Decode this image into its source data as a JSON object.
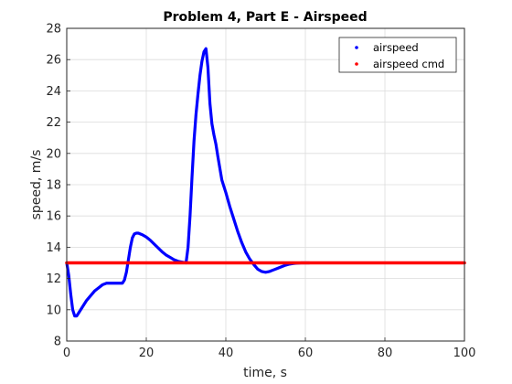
{
  "chart_data": {
    "type": "line",
    "title": "Problem 4, Part E - Airspeed",
    "xlabel": "time, s",
    "ylabel": "speed, m/s",
    "xlim": [
      0,
      100
    ],
    "ylim": [
      8,
      28
    ],
    "xticks": [
      0,
      20,
      40,
      60,
      80,
      100
    ],
    "yticks": [
      8,
      10,
      12,
      14,
      16,
      18,
      20,
      22,
      24,
      26,
      28
    ],
    "grid": true,
    "legend_position": "top-right",
    "series": [
      {
        "name": "airspeed",
        "color": "#0000ff",
        "x": [
          0,
          0.5,
          1,
          1.5,
          2,
          2.5,
          3,
          4,
          5,
          6,
          7,
          8,
          9,
          10,
          11,
          12,
          13,
          14,
          14.5,
          15,
          15.5,
          16,
          16.5,
          17,
          17.5,
          18,
          19,
          20,
          21,
          22,
          23,
          24,
          25,
          26,
          27,
          28,
          29,
          30,
          30.5,
          31,
          31.5,
          32,
          32.5,
          33,
          33.5,
          34,
          34.5,
          35,
          35.5,
          36,
          36.5,
          37,
          37.5,
          38,
          39,
          40,
          41,
          42,
          43,
          44,
          45,
          46,
          47,
          48,
          49,
          50,
          51,
          52,
          53,
          54,
          55,
          56,
          57,
          58,
          59,
          60,
          61
        ],
        "y": [
          13.0,
          12.2,
          11.0,
          10.0,
          9.6,
          9.6,
          9.8,
          10.2,
          10.6,
          10.9,
          11.2,
          11.4,
          11.6,
          11.7,
          11.7,
          11.7,
          11.7,
          11.7,
          11.9,
          12.4,
          13.2,
          14.0,
          14.6,
          14.85,
          14.9,
          14.9,
          14.8,
          14.65,
          14.45,
          14.2,
          13.95,
          13.7,
          13.5,
          13.35,
          13.2,
          13.1,
          13.05,
          13.0,
          14.0,
          16.0,
          18.5,
          20.8,
          22.5,
          23.8,
          25.0,
          25.9,
          26.5,
          26.7,
          25.5,
          23.2,
          21.9,
          21.2,
          20.6,
          19.8,
          18.3,
          17.5,
          16.6,
          15.8,
          15.0,
          14.3,
          13.7,
          13.25,
          12.9,
          12.6,
          12.45,
          12.4,
          12.45,
          12.55,
          12.65,
          12.75,
          12.85,
          12.92,
          12.96,
          12.98,
          13.0,
          13.0,
          13.0
        ]
      },
      {
        "name": "airspeed cmd",
        "color": "#ff0000",
        "x": [
          0,
          100
        ],
        "y": [
          13,
          13
        ]
      }
    ]
  }
}
